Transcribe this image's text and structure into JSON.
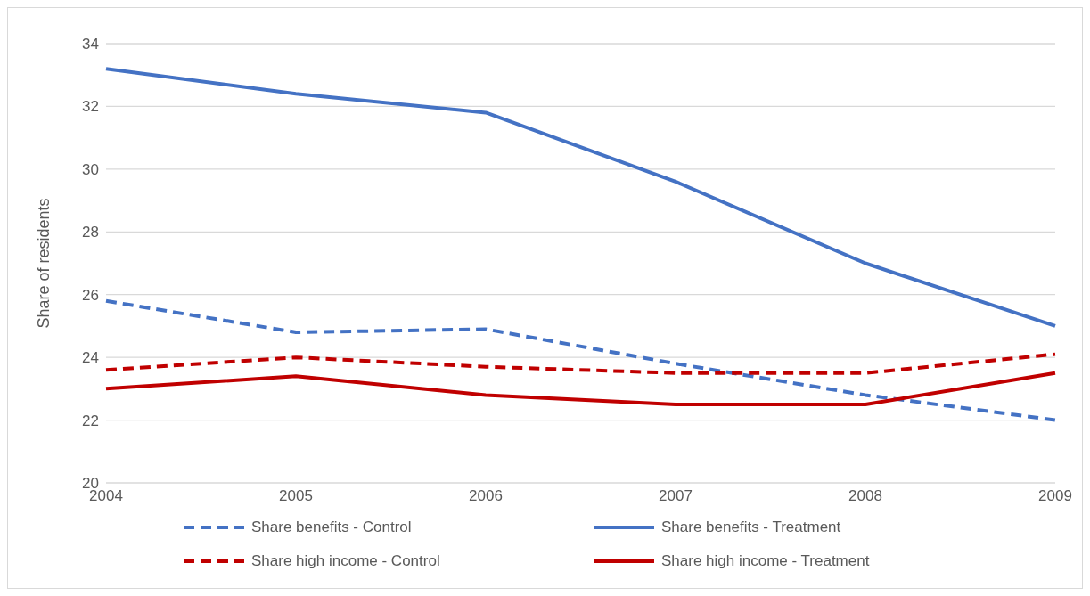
{
  "chart_data": {
    "type": "line",
    "ylabel": "Share of residents",
    "categories": [
      "2004",
      "2005",
      "2006",
      "2007",
      "2008",
      "2009"
    ],
    "ylim": [
      20,
      34
    ],
    "yticks": [
      20,
      22,
      24,
      26,
      28,
      30,
      32,
      34
    ],
    "grid": "y",
    "legend": "bottom",
    "marker": "none",
    "series": [
      {
        "name": "Share benefits - Control",
        "color": "#4472c4",
        "line_style": "dashed",
        "values": [
          25.8,
          24.8,
          24.9,
          23.8,
          22.8,
          22.0
        ]
      },
      {
        "name": "Share benefits - Treatment",
        "color": "#4472c4",
        "line_style": "solid",
        "values": [
          33.2,
          32.4,
          31.8,
          29.6,
          27.0,
          25.0
        ]
      },
      {
        "name": "Share high income - Control",
        "color": "#c00000",
        "line_style": "dashed",
        "values": [
          23.6,
          24.0,
          23.7,
          23.5,
          23.5,
          24.1
        ]
      },
      {
        "name": "Share high income - Treatment",
        "color": "#c00000",
        "line_style": "solid",
        "values": [
          23.0,
          23.4,
          22.8,
          22.5,
          22.5,
          23.5
        ]
      }
    ]
  }
}
